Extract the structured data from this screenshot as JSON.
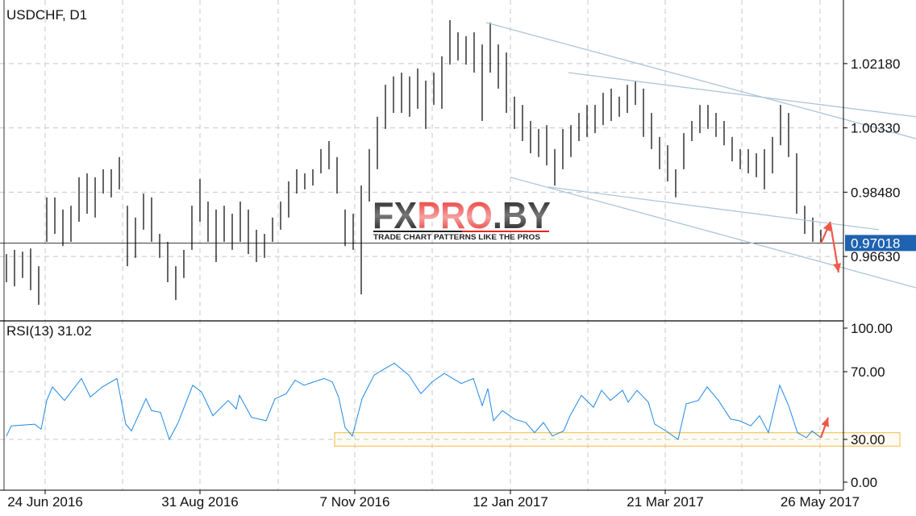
{
  "header": {
    "symbol_title": "USDCHF, D1"
  },
  "indicator": {
    "label": "RSI(13) 31.02"
  },
  "watermark": {
    "logo_text": "FXPRO.BY",
    "tagline": "TRADE CHART PATTERNS LIKE THE PROS"
  },
  "colors": {
    "bars": "#000000",
    "rsi_line": "#1e88e5",
    "trendlines": "#aec6d6",
    "arrows": "#f0584a",
    "current_price": "#1e62b0",
    "highlight_box": "#f5c96a",
    "grid": "#c8c8c8"
  },
  "chart_data": [
    {
      "type": "ohlc-bar",
      "title": "USDCHF, D1",
      "x_unit": "bar index",
      "ylim": [
        0.9478,
        1.0401
      ],
      "y_ticks": [
        "1.02180",
        "1.00330",
        "0.98480",
        "0.96630"
      ],
      "y_tick_values": [
        1.0218,
        1.0033,
        0.9848,
        0.9663
      ],
      "current_price": {
        "value": 0.97018,
        "label": "0.97018"
      },
      "grid": true,
      "bars_high_low": [
        [
          0.967,
          0.9589
        ],
        [
          0.9682,
          0.9577
        ],
        [
          0.9677,
          0.9601
        ],
        [
          0.9686,
          0.9566
        ],
        [
          0.9635,
          0.9524
        ],
        [
          0.9833,
          0.9705
        ],
        [
          0.9833,
          0.9728
        ],
        [
          0.9798,
          0.9693
        ],
        [
          0.9809,
          0.9705
        ],
        [
          0.9891,
          0.9763
        ],
        [
          0.9902,
          0.9786
        ],
        [
          0.9891,
          0.9775
        ],
        [
          0.9914,
          0.9844
        ],
        [
          0.9914,
          0.9833
        ],
        [
          0.9949,
          0.9856
        ],
        [
          0.9809,
          0.9635
        ],
        [
          0.9775,
          0.9659
        ],
        [
          0.9844,
          0.974
        ],
        [
          0.9833,
          0.9705
        ],
        [
          0.9728,
          0.9659
        ],
        [
          0.9705,
          0.9589
        ],
        [
          0.9635,
          0.9538
        ],
        [
          0.9682,
          0.9601
        ],
        [
          0.9809,
          0.9682
        ],
        [
          0.9886,
          0.9763
        ],
        [
          0.9821,
          0.9705
        ],
        [
          0.9798,
          0.9647
        ],
        [
          0.9809,
          0.9705
        ],
        [
          0.9786,
          0.9682
        ],
        [
          0.9821,
          0.9705
        ],
        [
          0.9798,
          0.967
        ],
        [
          0.974,
          0.9647
        ],
        [
          0.9728,
          0.9659
        ],
        [
          0.9775,
          0.9705
        ],
        [
          0.9821,
          0.974
        ],
        [
          0.9879,
          0.9775
        ],
        [
          0.9914,
          0.9844
        ],
        [
          0.9902,
          0.9856
        ],
        [
          0.9914,
          0.9867
        ],
        [
          0.9972,
          0.9902
        ],
        [
          0.9995,
          0.9914
        ],
        [
          0.9949,
          0.9844
        ],
        [
          0.9798,
          0.9693
        ],
        [
          0.9786,
          0.9682
        ],
        [
          0.9867,
          0.9554
        ],
        [
          0.9972,
          0.9821
        ],
        [
          1.0065,
          0.9914
        ],
        [
          1.0157,
          1.003
        ],
        [
          1.0181,
          1.0076
        ],
        [
          1.0192,
          1.0076
        ],
        [
          1.0181,
          1.0065
        ],
        [
          1.0204,
          1.0088
        ],
        [
          1.0169,
          1.003
        ],
        [
          1.0192,
          1.0099
        ],
        [
          1.0239,
          1.0088
        ],
        [
          1.0343,
          1.0215
        ],
        [
          1.0308,
          1.0227
        ],
        [
          1.0297,
          1.0215
        ],
        [
          1.0308,
          1.0192
        ],
        [
          1.0273,
          1.0053
        ],
        [
          1.0336,
          1.0192
        ],
        [
          1.0273,
          1.0146
        ],
        [
          1.025,
          1.0076
        ],
        [
          1.0123,
          1.003
        ],
        [
          1.0099,
          0.9995
        ],
        [
          1.0053,
          0.996
        ],
        [
          1.003,
          0.9949
        ],
        [
          1.0041,
          0.9925
        ],
        [
          0.9972,
          0.9867
        ],
        [
          1.003,
          0.9914
        ],
        [
          1.0041,
          0.9949
        ],
        [
          1.0076,
          0.9995
        ],
        [
          1.0099,
          1.0007
        ],
        [
          1.0099,
          1.0018
        ],
        [
          1.0134,
          1.0041
        ],
        [
          1.0146,
          1.0053
        ],
        [
          1.0123,
          1.0065
        ],
        [
          1.0157,
          1.0076
        ],
        [
          1.0169,
          1.0099
        ],
        [
          1.0146,
          1.0007
        ],
        [
          1.0076,
          0.9972
        ],
        [
          1.0007,
          0.9914
        ],
        [
          0.9983,
          0.9879
        ],
        [
          0.9914,
          0.9833
        ],
        [
          1.0018,
          0.9914
        ],
        [
          1.0053,
          0.9995
        ],
        [
          1.0099,
          1.0018
        ],
        [
          1.0099,
          1.003
        ],
        [
          1.0076,
          1.0007
        ],
        [
          1.0053,
          0.9983
        ],
        [
          1.0007,
          0.9937
        ],
        [
          0.9972,
          0.9914
        ],
        [
          0.9972,
          0.9902
        ],
        [
          0.996,
          0.9891
        ],
        [
          0.9972,
          0.9856
        ],
        [
          1.0007,
          0.9902
        ],
        [
          1.0099,
          0.9983
        ],
        [
          1.0076,
          0.9949
        ],
        [
          0.996,
          0.9786
        ],
        [
          0.9809,
          0.9728
        ],
        [
          0.9775,
          0.9705
        ],
        [
          0.974,
          0.9705
        ]
      ],
      "trendlines": [
        {
          "from": [
            59.5,
            1.0336
          ],
          "to": [
            112.8,
            1.0002
          ]
        },
        {
          "from": [
            69.7,
            1.0192
          ],
          "to": [
            112.8,
            1.0065
          ]
        },
        {
          "from": [
            62.5,
            0.9891
          ],
          "to": [
            112.8,
            0.9573
          ]
        },
        {
          "from": [
            67.2,
            0.9863
          ],
          "to": [
            108.2,
            0.974
          ]
        }
      ],
      "arrows": [
        {
          "from": [
            101,
            0.97
          ],
          "to": [
            102.2,
            0.9763
          ]
        },
        {
          "from": [
            102.2,
            0.9756
          ],
          "to": [
            103.2,
            0.9617
          ]
        }
      ]
    },
    {
      "type": "line",
      "title": "RSI(13) 31.02",
      "x_unit": "bar index",
      "ylim": [
        0,
        100
      ],
      "y_ticks": [
        "100.00",
        "70.00",
        "30.00",
        "0.00"
      ],
      "y_tick_values": [
        100,
        70,
        30,
        0
      ],
      "levels": [
        70,
        30
      ],
      "grid": true,
      "points": [
        [
          0,
          32
        ],
        [
          0.6,
          38
        ],
        [
          3.5,
          39
        ],
        [
          4.3,
          36
        ],
        [
          5,
          53
        ],
        [
          5.7,
          61
        ],
        [
          7.2,
          53
        ],
        [
          9.3,
          66
        ],
        [
          10.4,
          55
        ],
        [
          11.9,
          61
        ],
        [
          13.7,
          66
        ],
        [
          14.8,
          39
        ],
        [
          15.5,
          35
        ],
        [
          17.3,
          54
        ],
        [
          18,
          47
        ],
        [
          19.1,
          46
        ],
        [
          20.2,
          30
        ],
        [
          21.3,
          40
        ],
        [
          23.1,
          62
        ],
        [
          24.2,
          58
        ],
        [
          25.6,
          44
        ],
        [
          27.5,
          53
        ],
        [
          28.5,
          48
        ],
        [
          28.9,
          56
        ],
        [
          30.4,
          43
        ],
        [
          32.2,
          41
        ],
        [
          33.3,
          54
        ],
        [
          34.7,
          57
        ],
        [
          35.8,
          65
        ],
        [
          36.9,
          62
        ],
        [
          39.4,
          66
        ],
        [
          40.4,
          64
        ],
        [
          41.2,
          55
        ],
        [
          42,
          37
        ],
        [
          42.9,
          32
        ],
        [
          44.1,
          54
        ],
        [
          45.6,
          68
        ],
        [
          47,
          72
        ],
        [
          48.1,
          75
        ],
        [
          49.9,
          68
        ],
        [
          51.4,
          57
        ],
        [
          52.8,
          64
        ],
        [
          54.3,
          69
        ],
        [
          56.4,
          63
        ],
        [
          57.9,
          66
        ],
        [
          59,
          50
        ],
        [
          59.7,
          60
        ],
        [
          60.4,
          41
        ],
        [
          61.5,
          47
        ],
        [
          63,
          42
        ],
        [
          64.4,
          40
        ],
        [
          65.5,
          34
        ],
        [
          66.6,
          40
        ],
        [
          67.7,
          32
        ],
        [
          69.1,
          35
        ],
        [
          69.9,
          44
        ],
        [
          71.3,
          56
        ],
        [
          72.8,
          49
        ],
        [
          73.8,
          59
        ],
        [
          74.9,
          53
        ],
        [
          76.4,
          59
        ],
        [
          77.1,
          52
        ],
        [
          78.2,
          59
        ],
        [
          79.6,
          52
        ],
        [
          80.4,
          39
        ],
        [
          81.8,
          35
        ],
        [
          83.3,
          30
        ],
        [
          84.3,
          51
        ],
        [
          85.8,
          53
        ],
        [
          86.9,
          61
        ],
        [
          88.3,
          53
        ],
        [
          89.8,
          42
        ],
        [
          90.9,
          41
        ],
        [
          92.3,
          38
        ],
        [
          93.4,
          44
        ],
        [
          94.5,
          34
        ],
        [
          95.9,
          62
        ],
        [
          97,
          50
        ],
        [
          98.1,
          34
        ],
        [
          99.2,
          31
        ],
        [
          99.9,
          35
        ],
        [
          101,
          31
        ]
      ],
      "highlight_zone": {
        "x_from": 40.7,
        "x_to": 110.8,
        "y_from": 26,
        "y_to": 34
      },
      "arrow": {
        "from": [
          101,
          31
        ],
        "to": [
          101.9,
          43
        ]
      }
    }
  ],
  "x_axis": {
    "tick_labels": [
      "24 Jun 2016",
      "31 Aug 2016",
      "7 Nov 2016",
      "12 Jan 2017",
      "21 Mar 2017",
      "26 May 2017"
    ],
    "tick_index": [
      4.8,
      24,
      43.2,
      62.5,
      81.7,
      100.9
    ],
    "minor_grid_index": [
      14.4,
      33.7,
      52.8,
      72.1,
      91.2
    ]
  }
}
